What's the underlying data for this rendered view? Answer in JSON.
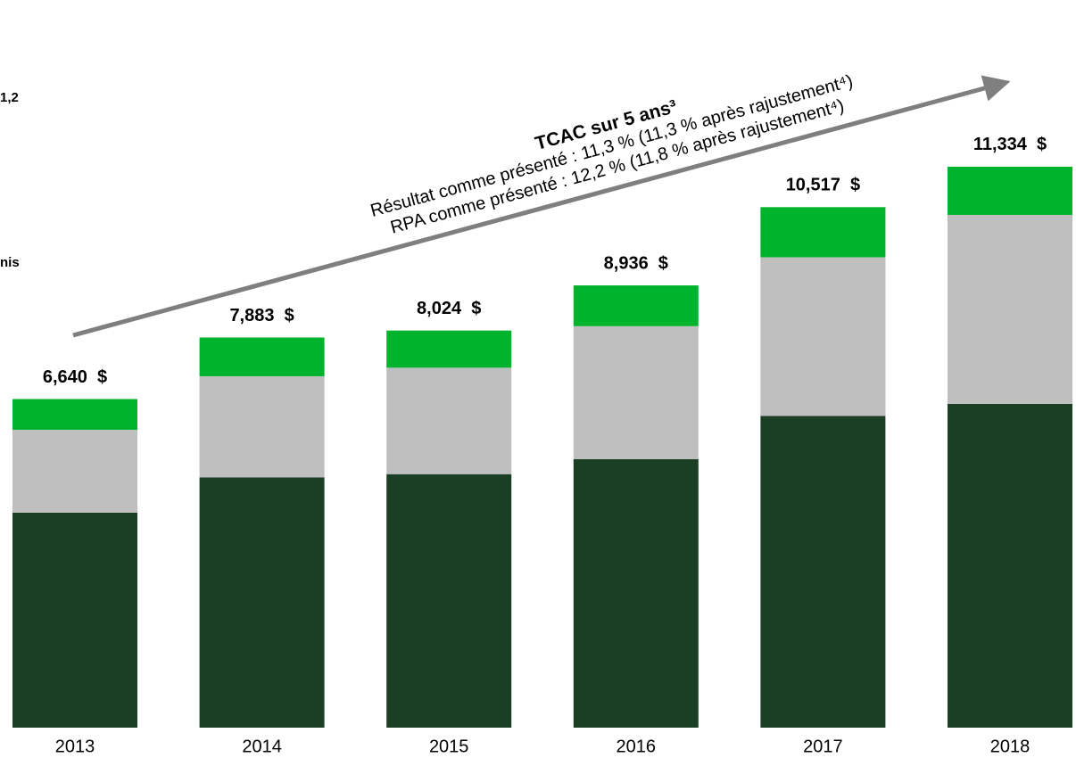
{
  "chart_data": {
    "type": "stacked_bar",
    "categories": [
      "2013",
      "2014",
      "2015",
      "2016",
      "2017",
      "2018"
    ],
    "series": [
      {
        "color": "#1a3f24",
        "values": [
          4345,
          5058,
          5122,
          5426,
          6298,
          6541
        ]
      },
      {
        "color": "#bfbfbf",
        "values": [
          1674,
          2042,
          2151,
          2686,
          3207,
          3820
        ]
      },
      {
        "color": "#00b32c",
        "values": [
          621,
          783,
          751,
          824,
          1012,
          973
        ]
      }
    ],
    "totals": [
      6640,
      7883,
      8024,
      8936,
      10517,
      11334
    ],
    "total_labels": [
      "6,640  $",
      "7,883  $",
      "8,024  $",
      "8,936  $",
      "10,517  $",
      "11,334  $"
    ],
    "ylim": [
      0,
      12000
    ],
    "annotation": {
      "title": "TCAC sur 5 ans³",
      "lines": [
        "Résultat comme présenté : 11,3 % (11,3 % après rajustement⁴)",
        "RPA comme présenté : 12,2 % (11,8 % après rajustement⁴)"
      ]
    },
    "fragments": [
      "1,2",
      "nis"
    ]
  }
}
